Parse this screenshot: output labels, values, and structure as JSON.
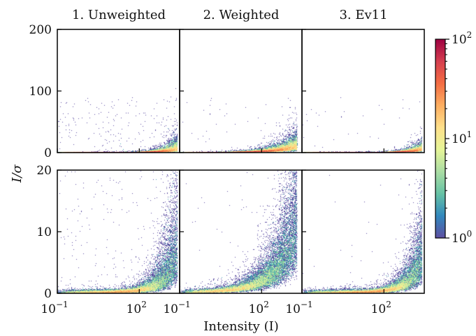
{
  "chart_data": {
    "type": "heatmap",
    "ylabel": "I/σ",
    "xlabel": "Intensity (I)",
    "xscale": "log",
    "xlim": [
      0.1,
      3000
    ],
    "x_tick_values": [
      0.1,
      100
    ],
    "x_tick_labels": [
      {
        "base": "10",
        "exp": "−1"
      },
      {
        "base": "10",
        "exp": "2"
      }
    ],
    "columns": [
      {
        "title": "1. Unweighted"
      },
      {
        "title": "2. Weighted"
      },
      {
        "title": "3. Ev11"
      }
    ],
    "rows": [
      {
        "ylim": [
          0,
          200
        ],
        "y_ticks": [
          0,
          100,
          200
        ]
      },
      {
        "ylim": [
          0,
          20
        ],
        "y_ticks": [
          0,
          10,
          20
        ]
      }
    ],
    "colorbar": {
      "scale": "log",
      "range": [
        1,
        100
      ],
      "colormap": "Spectral_r",
      "stops": [
        "#5e4fa2",
        "#3288bd",
        "#66c2a5",
        "#abdda4",
        "#e6f598",
        "#fee08b",
        "#fdae61",
        "#f46d43",
        "#d53e4f",
        "#9e0142"
      ],
      "ticks": [
        {
          "value": 1,
          "base": "10",
          "exp": "0"
        },
        {
          "value": 10,
          "base": "10",
          "exp": "1"
        },
        {
          "value": 100,
          "base": "10",
          "exp": "2"
        }
      ]
    },
    "grid": false,
    "models": [
      {
        "center": [
          -0.4,
          0.08
        ],
        "spread_ymult": 1.6,
        "log_x_range": [
          -1,
          3.4
        ],
        "y_slope": 0.0032,
        "y_exp": 1.0,
        "scatter_points": 14000,
        "outliers": 180
      },
      {
        "center": [
          -0.4,
          0.05
        ],
        "spread_ymult": 1.2,
        "log_x_range": [
          -1,
          3.3
        ],
        "y_slope": 0.11,
        "y_exp": 0.62,
        "scatter_points": 16000,
        "outliers": 40
      },
      {
        "center": [
          -0.4,
          0.06
        ],
        "spread_ymult": 1.3,
        "log_x_range": [
          -1,
          3.4
        ],
        "y_slope": 0.0025,
        "y_exp": 1.0,
        "scatter_points": 14000,
        "outliers": 30
      }
    ]
  }
}
